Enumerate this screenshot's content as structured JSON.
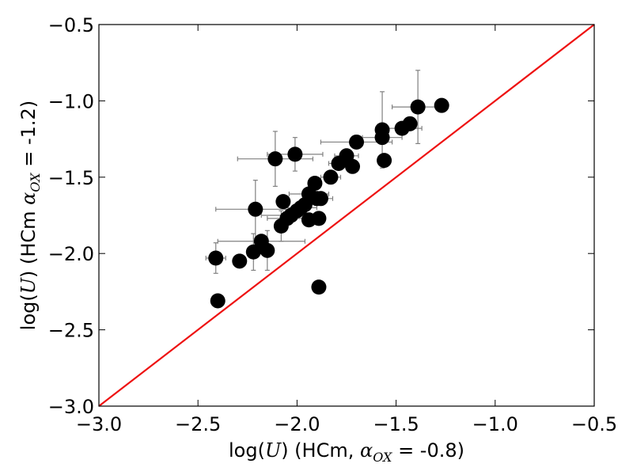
{
  "chart_data": {
    "type": "scatter",
    "title": "",
    "xlabel": {
      "prefix": "log(",
      "var": "U",
      "suffix": ") (HCm, ",
      "alpha": "α",
      "alpha_sub": "OX",
      "tail": " = -0.8)"
    },
    "ylabel": {
      "prefix": "log(",
      "var": "U",
      "suffix": ") (HCm ",
      "alpha": "α",
      "alpha_sub": "OX",
      "tail": " = -1.2)"
    },
    "xlim": [
      -3.0,
      -0.5
    ],
    "ylim": [
      -3.0,
      -0.5
    ],
    "xticks": [
      -3.0,
      -2.5,
      -2.0,
      -1.5,
      -1.0,
      -0.5
    ],
    "yticks": [
      -3.0,
      -2.5,
      -2.0,
      -1.5,
      -1.0,
      -0.5
    ],
    "xtick_labels": [
      "−3.0",
      "−2.5",
      "−2.0",
      "−1.5",
      "−1.0",
      "−0.5"
    ],
    "ytick_labels": [
      "−3.0",
      "−2.5",
      "−2.0",
      "−1.5",
      "−1.0",
      "−0.5"
    ],
    "grid": false,
    "reference_line": {
      "x": [
        -3.0,
        -0.5
      ],
      "y": [
        -3.0,
        -0.5
      ],
      "color": "#ee1111"
    },
    "marker_color": "#000000",
    "errorbar_color": "#808080",
    "points": [
      {
        "x": -2.41,
        "y": -2.03,
        "xerr": 0.05,
        "yerr": 0.1
      },
      {
        "x": -2.4,
        "y": -2.31
      },
      {
        "x": -2.29,
        "y": -2.05
      },
      {
        "x": -2.22,
        "y": -1.99,
        "yerr": 0.12
      },
      {
        "x": -2.21,
        "y": -1.71,
        "xerr": 0.2,
        "yerr": 0.19
      },
      {
        "x": -2.18,
        "y": -1.92,
        "xerr": 0.22
      },
      {
        "x": -2.15,
        "y": -1.98,
        "yerr": 0.13
      },
      {
        "x": -2.11,
        "y": -1.38,
        "xerr": 0.19,
        "yerr": 0.18
      },
      {
        "x": -2.08,
        "y": -1.82,
        "yerr": 0.1
      },
      {
        "x": -2.07,
        "y": -1.66
      },
      {
        "x": -2.05,
        "y": -1.77,
        "xerr": 0.1
      },
      {
        "x": -2.03,
        "y": -1.75,
        "xerr": 0.15
      },
      {
        "x": -2.01,
        "y": -1.35,
        "xerr": 0.14,
        "yerr": 0.11
      },
      {
        "x": -2.0,
        "y": -1.72
      },
      {
        "x": -1.98,
        "y": -1.7,
        "xerr": 0.08
      },
      {
        "x": -1.96,
        "y": -1.68
      },
      {
        "x": -1.94,
        "y": -1.78
      },
      {
        "x": -1.94,
        "y": -1.61,
        "xerr": 0.1
      },
      {
        "x": -1.91,
        "y": -1.54
      },
      {
        "x": -1.9,
        "y": -1.64
      },
      {
        "x": -1.89,
        "y": -1.77
      },
      {
        "x": -1.89,
        "y": -2.22
      },
      {
        "x": -1.88,
        "y": -1.64,
        "xerr": 0.06
      },
      {
        "x": -1.83,
        "y": -1.5,
        "xerr": 0.05
      },
      {
        "x": -1.79,
        "y": -1.41,
        "xerr": 0.05
      },
      {
        "x": -1.75,
        "y": -1.36,
        "xerr": 0.06
      },
      {
        "x": -1.72,
        "y": -1.43
      },
      {
        "x": -1.7,
        "y": -1.27,
        "xerr": 0.18
      },
      {
        "x": -1.57,
        "y": -1.19,
        "yerr": 0.25
      },
      {
        "x": -1.57,
        "y": -1.24,
        "xerr": 0.1
      },
      {
        "x": -1.56,
        "y": -1.39
      },
      {
        "x": -1.47,
        "y": -1.18,
        "xerr": 0.1
      },
      {
        "x": -1.43,
        "y": -1.15
      },
      {
        "x": -1.39,
        "y": -1.04,
        "xerr": 0.13,
        "yerr": 0.24
      },
      {
        "x": -1.27,
        "y": -1.03
      }
    ]
  }
}
